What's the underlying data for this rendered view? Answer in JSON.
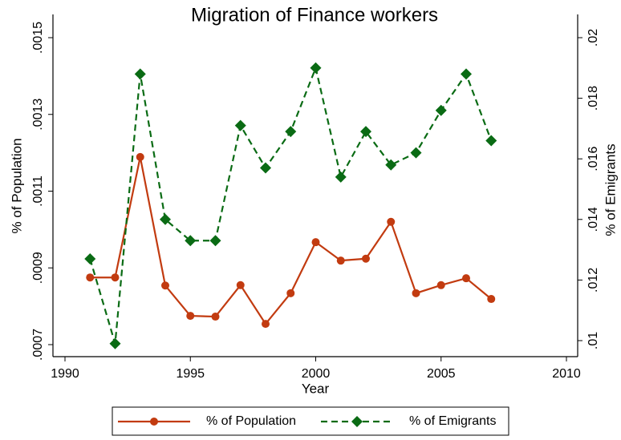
{
  "chart_data": {
    "type": "line",
    "title": "Migration of Finance workers",
    "xlabel": "Year",
    "ylabel": "% of Population",
    "y2label": "% of Emigrants",
    "x": [
      1991,
      1992,
      1993,
      1994,
      1995,
      1996,
      1997,
      1998,
      1999,
      2000,
      2001,
      2002,
      2003,
      2004,
      2005,
      2006,
      2007
    ],
    "xlim": [
      1990,
      2010
    ],
    "xticks": [
      1990,
      1995,
      2000,
      2005,
      2010
    ],
    "ylim": [
      0.0007,
      0.0015
    ],
    "yticks": [
      {
        "value": 0.0007,
        "label": ".0007"
      },
      {
        "value": 0.0009,
        "label": ".0009"
      },
      {
        "value": 0.0011,
        "label": ".0011"
      },
      {
        "value": 0.0013,
        "label": ".0013"
      },
      {
        "value": 0.0015,
        "label": ".0015"
      }
    ],
    "y2lim": [
      0.01,
      0.02
    ],
    "y2ticks": [
      {
        "value": 0.01,
        "label": ".01"
      },
      {
        "value": 0.012,
        "label": ".012"
      },
      {
        "value": 0.014,
        "label": ".014"
      },
      {
        "value": 0.016,
        "label": ".016"
      },
      {
        "value": 0.018,
        "label": ".018"
      },
      {
        "value": 0.02,
        "label": ".02"
      }
    ],
    "legend": "bottom",
    "series": [
      {
        "name": "% of Population",
        "color": "#c23b10",
        "marker": "circle",
        "dash": false,
        "values": [
          0.000875,
          0.000875,
          0.001189,
          0.000854,
          0.000775,
          0.000773,
          0.000855,
          0.000754,
          0.000834,
          0.000967,
          0.000919,
          0.000924,
          0.00102,
          0.000834,
          0.000855,
          0.000873,
          0.000819
        ]
      },
      {
        "name": "% of Emigrants",
        "color": "#0a6b14",
        "marker": "diamond",
        "dash": true,
        "axis": "y2",
        "values": [
          0.0127,
          0.0099,
          0.0188,
          0.014,
          0.0133,
          0.0133,
          0.0171,
          0.0157,
          0.0169,
          0.019,
          0.0154,
          0.0169,
          0.0158,
          0.0162,
          0.0176,
          0.0188,
          0.0166
        ]
      }
    ]
  }
}
